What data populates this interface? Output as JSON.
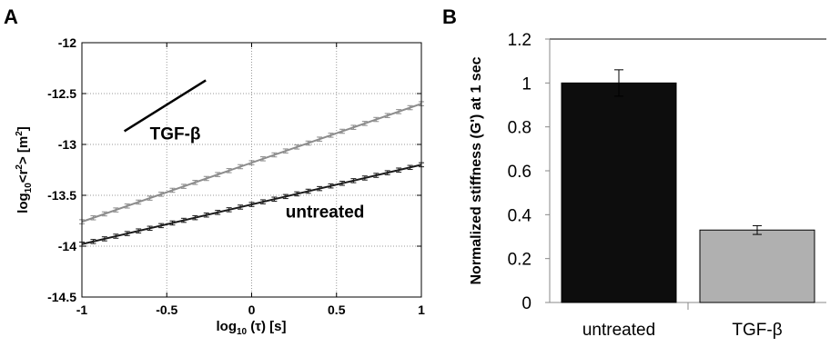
{
  "panels": {
    "a": {
      "letter": "A"
    },
    "b": {
      "letter": "B"
    }
  },
  "chart_data": [
    {
      "type": "line",
      "panel": "A",
      "xlabel": "log10 (τ) [s]",
      "xlabel_parts": {
        "pre": "log",
        "sub": "10",
        "post": " (τ) [s]"
      },
      "ylabel": "log10<r2> [m2]",
      "ylabel_parts": {
        "pre": "log",
        "sub": "10",
        "mid": "<r",
        "sup": "2",
        "mid2": "> [m",
        "sup2": "2",
        "post": "]"
      },
      "xlim": [
        -1,
        1
      ],
      "ylim": [
        -14.5,
        -12
      ],
      "xticks": [
        -1,
        -0.5,
        0,
        0.5,
        1
      ],
      "xtick_labels": [
        "-1",
        "-0.5",
        "0",
        "0.5",
        "1"
      ],
      "yticks": [
        -14.5,
        -14,
        -13.5,
        -13,
        -12.5,
        -12
      ],
      "ytick_labels": [
        "-14.5",
        "-14",
        "-13.5",
        "-13",
        "-12.5",
        "-12"
      ],
      "grid": true,
      "series": [
        {
          "name": "TGF-β",
          "color": "#8c8c8c",
          "x_start": -1.0,
          "x_end": 1.0,
          "points": 31,
          "y_start": -13.76,
          "y_end": -12.6,
          "error": 0.02,
          "label_x": -0.6,
          "label_y": -12.95
        },
        {
          "name": "untreated",
          "color": "#1a1a1a",
          "x_start": -1.0,
          "x_end": 1.0,
          "points": 31,
          "y_start": -13.98,
          "y_end": -13.2,
          "error": 0.02,
          "label_x": 0.2,
          "label_y": -13.72
        }
      ],
      "reference_line": {
        "x": [
          -0.75,
          -0.27
        ],
        "y": [
          -12.87,
          -12.37
        ],
        "color": "#000000"
      }
    },
    {
      "type": "bar",
      "panel": "B",
      "ylabel": "Normalized stiffness (G') at 1 sec",
      "categories": [
        "untreated",
        "TGF-β"
      ],
      "values": [
        1.0,
        0.33
      ],
      "errors": [
        0.06,
        0.02
      ],
      "colors": [
        "#0d0d0d",
        "#b0b0b0"
      ],
      "ylim": [
        0,
        1.2
      ],
      "yticks": [
        0,
        0.2,
        0.4,
        0.6,
        0.8,
        1,
        1.2
      ],
      "ytick_labels": [
        "0",
        "0.2",
        "0.4",
        "0.6",
        "0.8",
        "1",
        "1.2"
      ],
      "grid": false
    }
  ]
}
